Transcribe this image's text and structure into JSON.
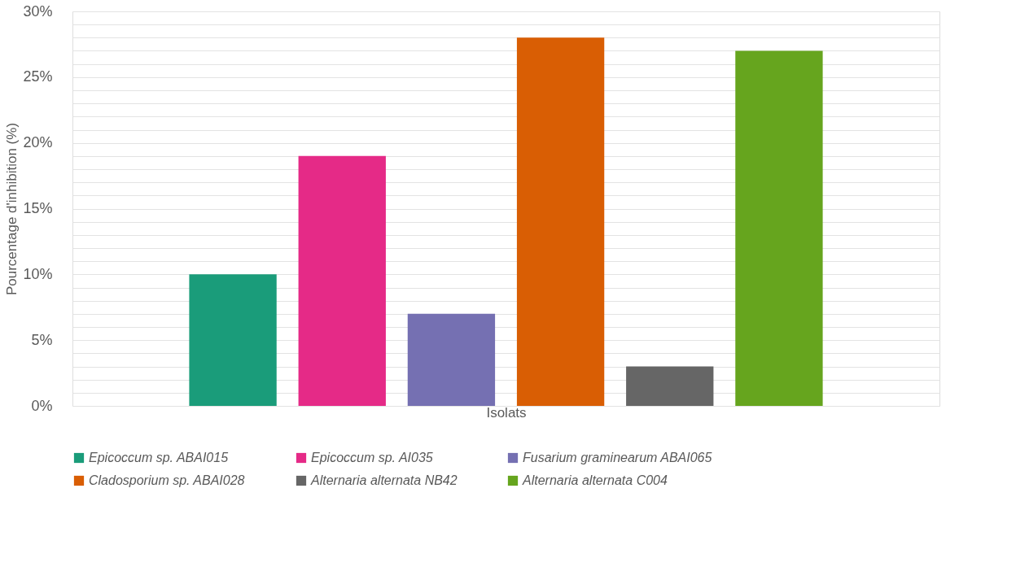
{
  "chart_data": {
    "type": "bar",
    "xlabel": "Isolats",
    "ylabel": "Pourcentage  d'inhibition  (%)",
    "categories": [
      null
    ],
    "series": [
      {
        "name": "Epicoccum sp. ABAI015",
        "color": "#1a9c7a",
        "values": [
          10
        ]
      },
      {
        "name": "Epicoccum sp. AI035",
        "color": "#e52a87",
        "values": [
          19
        ]
      },
      {
        "name": "Fusarium graminearum ABAI065",
        "color": "#7570b2",
        "values": [
          7
        ]
      },
      {
        "name": "Cladosporium sp. ABAI028",
        "color": "#d95e04",
        "values": [
          28
        ]
      },
      {
        "name": "Alternaria alternata NB42",
        "color": "#666666",
        "values": [
          3
        ]
      },
      {
        "name": "Alternaria alternata C004",
        "color": "#66a51e",
        "values": [
          27
        ]
      }
    ],
    "ylim": [
      0,
      30
    ],
    "yticks": [
      {
        "value": 0,
        "label": "0%"
      },
      {
        "value": 1,
        "label": null
      },
      {
        "value": 2,
        "label": null
      },
      {
        "value": 3,
        "label": null
      },
      {
        "value": 4,
        "label": null
      },
      {
        "value": 5,
        "label": "5%"
      },
      {
        "value": 6,
        "label": null
      },
      {
        "value": 7,
        "label": null
      },
      {
        "value": 8,
        "label": null
      },
      {
        "value": 9,
        "label": null
      },
      {
        "value": 10,
        "label": "10%"
      },
      {
        "value": 11,
        "label": null
      },
      {
        "value": 12,
        "label": null
      },
      {
        "value": 13,
        "label": null
      },
      {
        "value": 14,
        "label": null
      },
      {
        "value": 15,
        "label": "15%"
      },
      {
        "value": 16,
        "label": null
      },
      {
        "value": 17,
        "label": null
      },
      {
        "value": 18,
        "label": null
      },
      {
        "value": 19,
        "label": null
      },
      {
        "value": 20,
        "label": "20%"
      },
      {
        "value": 21,
        "label": null
      },
      {
        "value": 22,
        "label": null
      },
      {
        "value": 23,
        "label": null
      },
      {
        "value": 24,
        "label": null
      },
      {
        "value": 25,
        "label": "25%"
      },
      {
        "value": 26,
        "label": null
      },
      {
        "value": 27,
        "label": null
      },
      {
        "value": 28,
        "label": null
      },
      {
        "value": 29,
        "label": null
      },
      {
        "value": 30,
        "label": "30%"
      }
    ],
    "grid": "y",
    "legend": "bottom"
  }
}
